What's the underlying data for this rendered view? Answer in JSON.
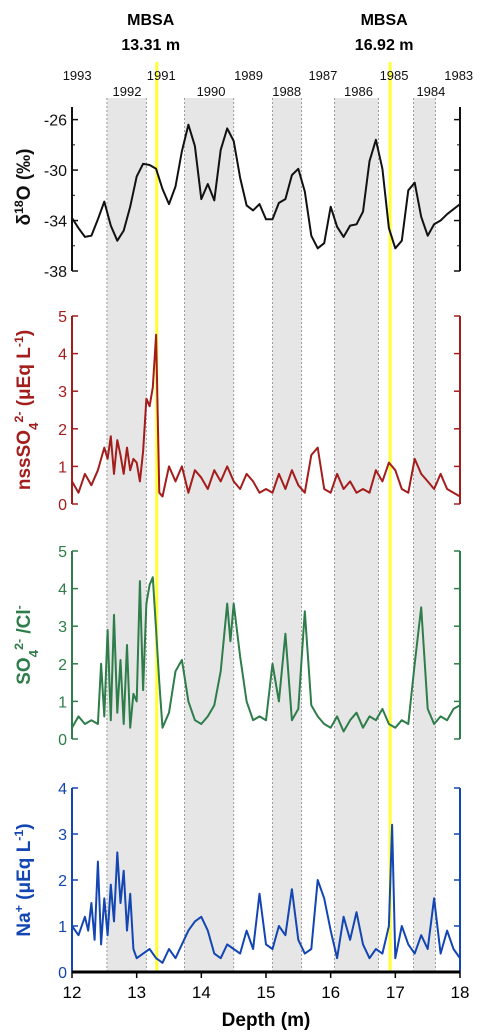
{
  "chart_data": {
    "type": "line",
    "xlabel": "Depth (m)",
    "xlim": [
      12,
      18
    ],
    "xticks": [
      12,
      13,
      14,
      15,
      16,
      17,
      18
    ],
    "events": [
      {
        "label": "MBSA",
        "depth_label": "13.31 m",
        "depth": 13.31
      },
      {
        "label": "MBSA",
        "depth_label": "16.92 m",
        "depth": 16.92
      }
    ],
    "event_color": "#ffff33",
    "year_labels": [
      {
        "year": "1993",
        "x": 12.08,
        "row": 0
      },
      {
        "year": "1992",
        "x": 12.85,
        "row": 1
      },
      {
        "year": "1991",
        "x": 13.38,
        "row": 0
      },
      {
        "year": "1990",
        "x": 14.15,
        "row": 1
      },
      {
        "year": "1989",
        "x": 14.73,
        "row": 0
      },
      {
        "year": "1988",
        "x": 15.32,
        "row": 1
      },
      {
        "year": "1987",
        "x": 15.88,
        "row": 0
      },
      {
        "year": "1986",
        "x": 16.43,
        "row": 1
      },
      {
        "year": "1985",
        "x": 16.98,
        "row": 0
      },
      {
        "year": "1984",
        "x": 17.55,
        "row": 1
      },
      {
        "year": "1983",
        "x": 17.98,
        "row": 0
      }
    ],
    "shaded_bands": [
      [
        12.54,
        13.15
      ],
      [
        13.74,
        14.5
      ],
      [
        15.1,
        15.55
      ],
      [
        16.06,
        16.74
      ],
      [
        17.28,
        17.62
      ]
    ],
    "panels": [
      {
        "id": "d18o",
        "ylabel_html": "δ<tspan baseline-shift='super' font-size='65%'>18</tspan>O (‰)",
        "color": "#111111",
        "ylim": [
          -38,
          -25
        ],
        "yticks": [
          -38,
          -34,
          -30,
          -26
        ],
        "inverted": false,
        "x": [
          12.0,
          12.1,
          12.2,
          12.3,
          12.4,
          12.5,
          12.6,
          12.7,
          12.8,
          12.9,
          13.0,
          13.1,
          13.2,
          13.3,
          13.4,
          13.5,
          13.6,
          13.7,
          13.8,
          13.9,
          14.0,
          14.1,
          14.2,
          14.3,
          14.4,
          14.5,
          14.6,
          14.7,
          14.8,
          14.9,
          15.0,
          15.1,
          15.2,
          15.3,
          15.4,
          15.5,
          15.6,
          15.7,
          15.8,
          15.9,
          16.0,
          16.1,
          16.2,
          16.3,
          16.4,
          16.5,
          16.6,
          16.7,
          16.8,
          16.9,
          17.0,
          17.1,
          17.2,
          17.3,
          17.4,
          17.5,
          17.6,
          17.7,
          17.8,
          17.9,
          18.0
        ],
        "y": [
          -33.8,
          -34.6,
          -35.3,
          -35.2,
          -33.9,
          -32.5,
          -34.4,
          -35.6,
          -34.8,
          -32.9,
          -30.5,
          -29.5,
          -29.6,
          -29.9,
          -31.5,
          -32.7,
          -31.3,
          -28.5,
          -26.4,
          -28.1,
          -32.3,
          -31.1,
          -32.4,
          -28.4,
          -26.7,
          -27.7,
          -30.6,
          -32.8,
          -33.2,
          -32.7,
          -33.9,
          -33.9,
          -32.6,
          -32.3,
          -30.4,
          -29.9,
          -31.7,
          -35.2,
          -36.2,
          -35.8,
          -32.9,
          -34.5,
          -35.3,
          -34.4,
          -34.3,
          -33.3,
          -29.3,
          -27.6,
          -29.9,
          -34.6,
          -36.2,
          -35.6,
          -31.6,
          -31.0,
          -33.7,
          -35.2,
          -34.3,
          -34.0,
          -33.5,
          -33.1,
          -32.7
        ]
      },
      {
        "id": "nss",
        "ylabel_html": "nssSO<tspan baseline-shift='sub' font-size='70%'>4</tspan><tspan baseline-shift='super' font-size='65%'>2-</tspan> (μEq L<tspan baseline-shift='super' font-size='65%'>-1</tspan>)",
        "color": "#a41d1d",
        "ylim": [
          0,
          5
        ],
        "yticks": [
          0,
          1,
          2,
          3,
          4,
          5
        ],
        "x": [
          12.0,
          12.1,
          12.2,
          12.3,
          12.4,
          12.5,
          12.55,
          12.6,
          12.65,
          12.7,
          12.75,
          12.8,
          12.85,
          12.9,
          12.95,
          13.0,
          13.05,
          13.1,
          13.15,
          13.2,
          13.25,
          13.3,
          13.35,
          13.4,
          13.5,
          13.6,
          13.7,
          13.8,
          13.9,
          14.0,
          14.1,
          14.2,
          14.3,
          14.4,
          14.5,
          14.6,
          14.7,
          14.8,
          14.9,
          15.0,
          15.1,
          15.2,
          15.3,
          15.4,
          15.5,
          15.6,
          15.7,
          15.8,
          15.9,
          16.0,
          16.1,
          16.2,
          16.3,
          16.4,
          16.5,
          16.6,
          16.7,
          16.8,
          16.9,
          17.0,
          17.1,
          17.2,
          17.3,
          17.4,
          17.5,
          17.6,
          17.7,
          17.8,
          17.9,
          18.0
        ],
        "y": [
          0.6,
          0.3,
          0.8,
          0.5,
          0.9,
          1.5,
          1.2,
          1.8,
          0.8,
          1.7,
          1.3,
          0.8,
          1.5,
          0.9,
          1.2,
          1.1,
          0.6,
          1.4,
          2.8,
          2.6,
          3.1,
          4.5,
          0.3,
          0.2,
          1.0,
          0.6,
          1.0,
          0.3,
          0.9,
          0.7,
          0.4,
          0.9,
          0.6,
          1.0,
          0.6,
          0.4,
          0.8,
          0.6,
          0.3,
          0.4,
          0.3,
          0.8,
          0.4,
          0.9,
          0.5,
          0.3,
          1.3,
          1.5,
          0.4,
          0.3,
          0.8,
          0.4,
          0.6,
          0.3,
          0.4,
          0.3,
          0.9,
          0.6,
          1.1,
          0.9,
          0.4,
          0.3,
          1.2,
          0.8,
          0.6,
          0.4,
          0.8,
          0.4,
          0.3,
          0.2
        ]
      },
      {
        "id": "so4cl",
        "ylabel_html": "SO<tspan baseline-shift='sub' font-size='70%'>4</tspan><tspan baseline-shift='super' font-size='65%'>2-</tspan> /Cl<tspan baseline-shift='super' font-size='65%'>-</tspan>",
        "color": "#2e7d4a",
        "ylim": [
          0,
          5
        ],
        "yticks": [
          0,
          1,
          2,
          3,
          4,
          5
        ],
        "x": [
          12.0,
          12.1,
          12.2,
          12.3,
          12.4,
          12.45,
          12.5,
          12.55,
          12.6,
          12.65,
          12.7,
          12.75,
          12.8,
          12.85,
          12.9,
          12.95,
          13.0,
          13.05,
          13.1,
          13.15,
          13.2,
          13.25,
          13.3,
          13.35,
          13.4,
          13.5,
          13.6,
          13.7,
          13.8,
          13.9,
          14.0,
          14.1,
          14.2,
          14.3,
          14.4,
          14.45,
          14.5,
          14.6,
          14.7,
          14.8,
          14.9,
          15.0,
          15.1,
          15.2,
          15.3,
          15.4,
          15.5,
          15.6,
          15.7,
          15.8,
          15.9,
          16.0,
          16.1,
          16.2,
          16.3,
          16.4,
          16.5,
          16.6,
          16.7,
          16.8,
          16.9,
          17.0,
          17.1,
          17.2,
          17.3,
          17.4,
          17.5,
          17.6,
          17.7,
          17.8,
          17.9,
          18.0
        ],
        "y": [
          0.3,
          0.6,
          0.4,
          0.5,
          0.4,
          2.0,
          0.6,
          2.9,
          0.5,
          3.3,
          0.7,
          2.1,
          0.4,
          2.5,
          0.3,
          1.2,
          1.0,
          4.2,
          1.3,
          3.6,
          4.1,
          4.3,
          2.9,
          1.5,
          0.3,
          0.7,
          1.8,
          2.1,
          1.0,
          0.5,
          0.4,
          0.6,
          0.9,
          1.8,
          3.6,
          2.6,
          3.6,
          2.2,
          1.0,
          0.5,
          0.6,
          0.5,
          2.0,
          1.0,
          2.8,
          0.5,
          0.8,
          3.4,
          0.9,
          0.6,
          0.4,
          0.3,
          0.6,
          0.2,
          0.5,
          0.7,
          0.3,
          0.6,
          0.5,
          0.8,
          0.4,
          0.3,
          0.5,
          0.4,
          2.0,
          3.5,
          0.8,
          0.4,
          0.6,
          0.5,
          0.8,
          0.9
        ]
      },
      {
        "id": "na",
        "ylabel_html": "Na<tspan baseline-shift='super' font-size='65%'>+</tspan> (μEq L<tspan baseline-shift='super' font-size='65%'>-1</tspan>)",
        "color": "#1346b3",
        "ylim": [
          0,
          4
        ],
        "yticks": [
          0,
          1,
          2,
          3,
          4
        ],
        "x": [
          12.0,
          12.1,
          12.2,
          12.25,
          12.3,
          12.35,
          12.4,
          12.45,
          12.5,
          12.55,
          12.6,
          12.65,
          12.7,
          12.75,
          12.8,
          12.85,
          12.9,
          12.95,
          13.0,
          13.1,
          13.2,
          13.3,
          13.4,
          13.5,
          13.6,
          13.7,
          13.8,
          13.9,
          14.0,
          14.1,
          14.2,
          14.3,
          14.4,
          14.5,
          14.6,
          14.7,
          14.8,
          14.9,
          15.0,
          15.1,
          15.2,
          15.3,
          15.4,
          15.5,
          15.6,
          15.7,
          15.8,
          15.9,
          16.0,
          16.1,
          16.2,
          16.3,
          16.4,
          16.5,
          16.6,
          16.7,
          16.8,
          16.9,
          16.95,
          17.0,
          17.1,
          17.2,
          17.3,
          17.4,
          17.5,
          17.6,
          17.7,
          17.8,
          17.9,
          18.0
        ],
        "y": [
          1.0,
          0.8,
          1.2,
          0.9,
          1.5,
          0.7,
          2.4,
          0.6,
          1.6,
          0.8,
          1.9,
          1.1,
          2.6,
          1.5,
          2.2,
          0.9,
          1.7,
          0.5,
          0.3,
          0.4,
          0.5,
          0.3,
          0.2,
          0.5,
          0.3,
          0.6,
          0.9,
          1.1,
          1.2,
          0.9,
          0.4,
          0.3,
          0.6,
          0.5,
          0.4,
          0.9,
          0.5,
          1.7,
          0.6,
          0.5,
          1.0,
          0.8,
          1.8,
          0.7,
          0.4,
          0.5,
          2.0,
          1.6,
          0.9,
          0.3,
          1.2,
          0.7,
          1.3,
          0.6,
          0.3,
          0.5,
          0.4,
          1.0,
          3.2,
          0.3,
          1.0,
          0.6,
          0.4,
          0.8,
          0.5,
          1.6,
          0.4,
          0.9,
          0.5,
          0.3
        ]
      }
    ]
  }
}
